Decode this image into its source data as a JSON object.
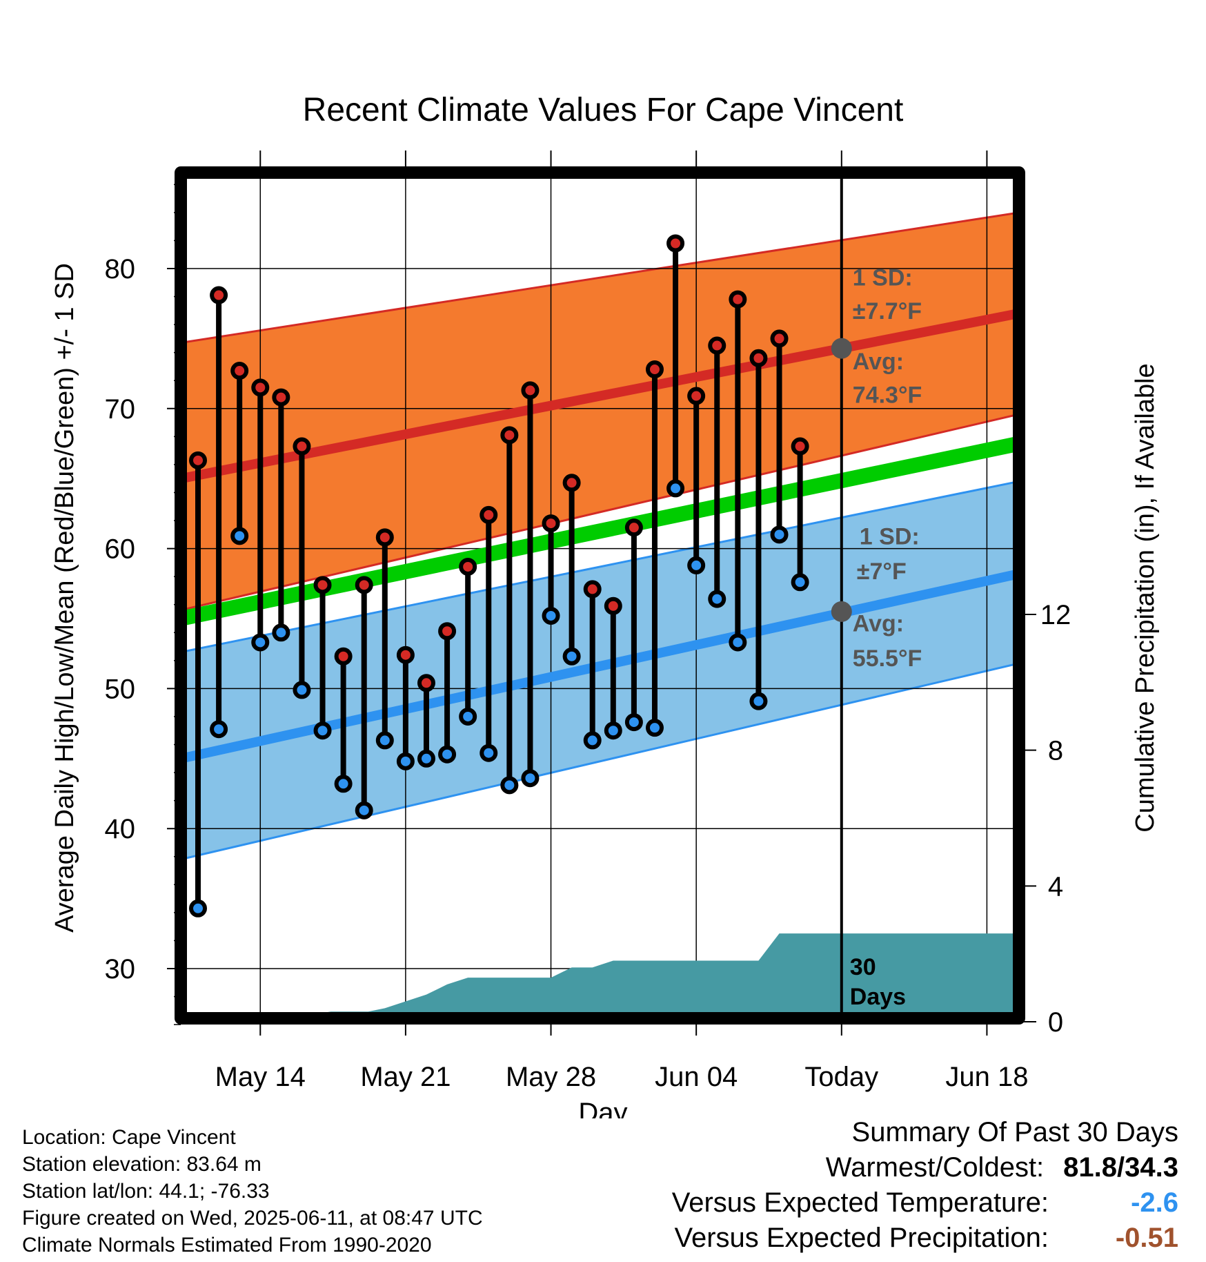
{
  "chart_data": {
    "type": "line",
    "title": "Recent Climate Values For Cape Vincent",
    "xlabel": "Day",
    "ylabel": "Average Daily High/Low/Mean (Red/Blue/Green) +/- 1 SD",
    "y2label": "Cumulative Precipitation (in), If Available",
    "ylim": [
      26.5,
      86
    ],
    "y_ticks": [
      30,
      40,
      50,
      60,
      70,
      80
    ],
    "y2lim": [
      0,
      29
    ],
    "y2_ticks": [
      0,
      4,
      8,
      12
    ],
    "x_ticks": [
      {
        "day": 3,
        "label": "May 14"
      },
      {
        "day": 10,
        "label": "May 21"
      },
      {
        "day": 17,
        "label": "May 28"
      },
      {
        "day": 24,
        "label": "Jun 04"
      },
      {
        "day": 31,
        "label": "Today"
      },
      {
        "day": 38,
        "label": "Jun 18"
      }
    ],
    "xlim": [
      -0.3,
      41.2
    ],
    "grid": true,
    "highs": [
      66.3,
      78.1,
      72.7,
      71.5,
      70.8,
      67.3,
      57.4,
      52.3,
      57.4,
      60.8,
      52.4,
      50.4,
      54.1,
      58.7,
      62.4,
      68.1,
      71.3,
      61.8,
      64.7,
      57.1,
      55.9,
      61.5,
      72.8,
      81.8,
      70.9,
      74.5,
      77.8,
      73.6,
      75.0,
      67.3
    ],
    "lows": [
      34.3,
      47.1,
      60.9,
      53.3,
      54.0,
      49.9,
      47.0,
      43.2,
      41.3,
      46.3,
      44.8,
      45.0,
      45.3,
      48.0,
      45.4,
      43.1,
      43.6,
      55.2,
      52.3,
      46.3,
      47.0,
      47.6,
      47.2,
      64.3,
      58.8,
      56.4,
      53.3,
      49.1,
      61.0,
      57.6
    ],
    "normals": {
      "avg_high": {
        "start": 65.0,
        "end": 76.8
      },
      "avg_low": {
        "start": 45.0,
        "end": 58.2
      },
      "avg_mean": {
        "start": 55.0,
        "end": 67.5
      },
      "high_band_upper": {
        "start": 74.7,
        "end": 84.0
      },
      "high_band_lower": {
        "start": 55.6,
        "end": 69.6
      },
      "low_band_upper": {
        "start": 52.6,
        "end": 64.8
      },
      "low_band_lower": {
        "start": 37.8,
        "end": 51.8
      }
    },
    "precip_cumulative": {
      "x": [
        -0.3,
        4.4,
        5.4,
        6.4,
        8.2,
        9.0,
        10.0,
        11.0,
        12.0,
        13.0,
        14.0,
        15.0,
        16.0,
        17.0,
        18.0,
        19.0,
        20.0,
        21.0,
        22.0,
        23.0,
        24.0,
        25.0,
        26.0,
        27.0,
        28.0,
        29.0,
        30.0,
        31.0,
        41.2
      ],
      "values": [
        0,
        0,
        0.2,
        0.3,
        0.3,
        0.4,
        0.6,
        0.8,
        1.1,
        1.3,
        1.3,
        1.3,
        1.3,
        1.3,
        1.6,
        1.6,
        1.8,
        1.8,
        1.8,
        1.8,
        1.8,
        1.8,
        1.8,
        1.8,
        2.6,
        2.6,
        2.6,
        2.6,
        2.6
      ]
    },
    "annotations": {
      "high_sd": "1 SD:",
      "high_sd_val": "±7.7°F",
      "high_avg": "Avg:",
      "high_avg_val": "74.3°F",
      "low_sd": "1 SD:",
      "low_sd_val": "±7°F",
      "low_avg": "Avg:",
      "low_avg_val": "55.5°F",
      "days_line1": "30",
      "days_line2": "Days"
    },
    "today_markers": {
      "high": 74.3,
      "low": 55.5
    },
    "colors": {
      "high_band": "#f47a2e",
      "high_line": "#d42a25",
      "low_band": "#86c2e8",
      "low_line": "#2e92f0",
      "mean_line": "#00cc00",
      "precip": "#469aa3",
      "high_point": "#d42a25",
      "low_point": "#2e92f0"
    }
  },
  "info": {
    "location": "Location: Cape Vincent",
    "elevation": "Station elevation: 83.64 m",
    "latlon": "Station lat/lon: 44.1; -76.33",
    "created": "Figure created on Wed, 2025-06-11, at 08:47 UTC",
    "normals": "Climate Normals Estimated From 1990-2020"
  },
  "summary": {
    "title": "Summary Of Past 30 Days",
    "warm_cold_label": "Warmest/Coldest:",
    "warm_cold_value": "81.8/34.3",
    "temp_label": "Versus Expected Temperature:",
    "temp_value": "-2.6",
    "temp_color": "#2e92f0",
    "precip_label": "Versus Expected Precipitation:",
    "precip_value": "-0.51",
    "precip_color": "#a0522d"
  }
}
